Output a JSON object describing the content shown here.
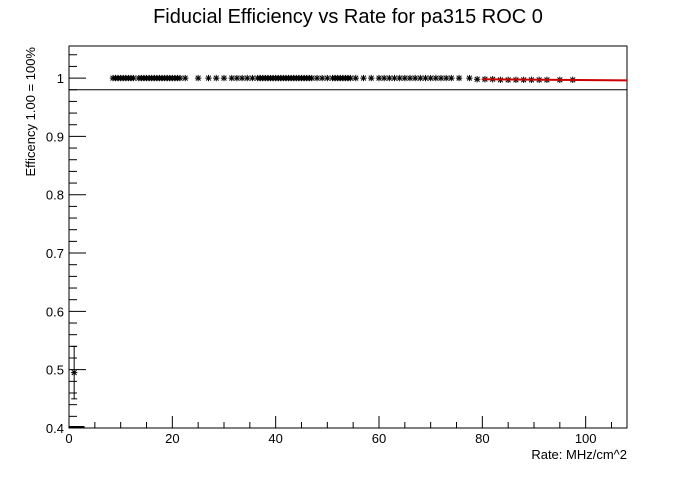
{
  "chart_data": {
    "type": "scatter",
    "title": "Fiducial Efficiency vs Rate for pa315 ROC 0",
    "xlabel": "Rate: MHz/cm^2",
    "ylabel": "Efficency 1.00 = 100%",
    "xlim": [
      0,
      108
    ],
    "ylim": [
      0.4,
      1.055
    ],
    "x_ticks": [
      0,
      20,
      40,
      60,
      80,
      100
    ],
    "x_tick_labels": [
      "0",
      "20",
      "40",
      "60",
      "80",
      "100"
    ],
    "y_ticks": [
      0.4,
      0.5,
      0.6,
      0.7,
      0.8,
      0.9,
      1.0
    ],
    "y_tick_labels": [
      "0.4",
      "0.5",
      "0.6",
      "0.7",
      "0.8",
      "0.9",
      "1"
    ],
    "grid": false,
    "reference_line": {
      "y": 0.98,
      "color": "#000000"
    },
    "fit_line": {
      "x": [
        80,
        108
      ],
      "y": [
        0.998,
        0.996
      ],
      "color": "#cc0000"
    },
    "series": [
      {
        "marker": "asterisk",
        "color": "#000000",
        "points": [
          {
            "x": 1.0,
            "y": 0.495,
            "yerr": 0.045
          },
          {
            "x": 8.5,
            "y": 1.0
          },
          {
            "x": 9.0,
            "y": 1.0
          },
          {
            "x": 9.5,
            "y": 1.0
          },
          {
            "x": 10.0,
            "y": 1.0
          },
          {
            "x": 10.5,
            "y": 1.0
          },
          {
            "x": 11.0,
            "y": 1.0
          },
          {
            "x": 11.5,
            "y": 1.0
          },
          {
            "x": 12.0,
            "y": 1.0
          },
          {
            "x": 12.5,
            "y": 1.0
          },
          {
            "x": 13.5,
            "y": 1.0
          },
          {
            "x": 14.0,
            "y": 1.0
          },
          {
            "x": 14.5,
            "y": 1.0
          },
          {
            "x": 15.0,
            "y": 1.0
          },
          {
            "x": 15.5,
            "y": 1.0
          },
          {
            "x": 16.0,
            "y": 1.0
          },
          {
            "x": 16.5,
            "y": 1.0
          },
          {
            "x": 17.0,
            "y": 1.0
          },
          {
            "x": 17.5,
            "y": 1.0
          },
          {
            "x": 18.0,
            "y": 1.0
          },
          {
            "x": 18.5,
            "y": 1.0
          },
          {
            "x": 19.0,
            "y": 1.0
          },
          {
            "x": 19.5,
            "y": 1.0
          },
          {
            "x": 20.0,
            "y": 1.0
          },
          {
            "x": 20.5,
            "y": 1.0
          },
          {
            "x": 21.0,
            "y": 1.0
          },
          {
            "x": 21.5,
            "y": 1.0
          },
          {
            "x": 22.5,
            "y": 1.0
          },
          {
            "x": 25.0,
            "y": 1.0
          },
          {
            "x": 27.0,
            "y": 1.0
          },
          {
            "x": 28.5,
            "y": 1.0
          },
          {
            "x": 30.0,
            "y": 1.0
          },
          {
            "x": 31.5,
            "y": 1.0
          },
          {
            "x": 32.5,
            "y": 1.0
          },
          {
            "x": 33.5,
            "y": 1.0
          },
          {
            "x": 34.5,
            "y": 1.0
          },
          {
            "x": 35.5,
            "y": 1.0
          },
          {
            "x": 36.5,
            "y": 1.0
          },
          {
            "x": 37.0,
            "y": 1.0
          },
          {
            "x": 37.5,
            "y": 1.0
          },
          {
            "x": 38.0,
            "y": 1.0
          },
          {
            "x": 38.5,
            "y": 1.0
          },
          {
            "x": 39.0,
            "y": 1.0
          },
          {
            "x": 39.5,
            "y": 1.0
          },
          {
            "x": 40.0,
            "y": 1.0
          },
          {
            "x": 40.5,
            "y": 1.0
          },
          {
            "x": 41.0,
            "y": 1.0
          },
          {
            "x": 41.5,
            "y": 1.0
          },
          {
            "x": 42.0,
            "y": 1.0
          },
          {
            "x": 42.5,
            "y": 1.0
          },
          {
            "x": 43.0,
            "y": 1.0
          },
          {
            "x": 43.5,
            "y": 1.0
          },
          {
            "x": 44.0,
            "y": 1.0
          },
          {
            "x": 44.5,
            "y": 1.0
          },
          {
            "x": 45.0,
            "y": 1.0
          },
          {
            "x": 45.5,
            "y": 1.0
          },
          {
            "x": 46.0,
            "y": 1.0
          },
          {
            "x": 46.5,
            "y": 1.0
          },
          {
            "x": 47.0,
            "y": 1.0
          },
          {
            "x": 48.0,
            "y": 1.0
          },
          {
            "x": 49.0,
            "y": 1.0
          },
          {
            "x": 50.0,
            "y": 1.0
          },
          {
            "x": 51.0,
            "y": 1.0
          },
          {
            "x": 51.5,
            "y": 1.0
          },
          {
            "x": 52.0,
            "y": 1.0
          },
          {
            "x": 52.5,
            "y": 1.0
          },
          {
            "x": 53.0,
            "y": 1.0
          },
          {
            "x": 53.5,
            "y": 1.0
          },
          {
            "x": 54.0,
            "y": 1.0
          },
          {
            "x": 54.5,
            "y": 1.0
          },
          {
            "x": 55.5,
            "y": 1.0
          },
          {
            "x": 57.0,
            "y": 1.0
          },
          {
            "x": 58.5,
            "y": 1.0
          },
          {
            "x": 60.0,
            "y": 1.0
          },
          {
            "x": 61.0,
            "y": 1.0
          },
          {
            "x": 62.0,
            "y": 1.0
          },
          {
            "x": 63.0,
            "y": 1.0
          },
          {
            "x": 64.0,
            "y": 1.0
          },
          {
            "x": 65.0,
            "y": 1.0
          },
          {
            "x": 66.0,
            "y": 1.0
          },
          {
            "x": 67.0,
            "y": 1.0
          },
          {
            "x": 68.0,
            "y": 1.0
          },
          {
            "x": 69.0,
            "y": 1.0
          },
          {
            "x": 70.0,
            "y": 1.0
          },
          {
            "x": 71.0,
            "y": 1.0
          },
          {
            "x": 72.0,
            "y": 1.0
          },
          {
            "x": 73.0,
            "y": 1.0
          },
          {
            "x": 74.0,
            "y": 1.0
          },
          {
            "x": 75.5,
            "y": 1.0
          },
          {
            "x": 77.5,
            "y": 1.0
          },
          {
            "x": 79.0,
            "y": 0.998
          },
          {
            "x": 80.5,
            "y": 0.998
          },
          {
            "x": 82.0,
            "y": 0.998
          },
          {
            "x": 83.5,
            "y": 0.997
          },
          {
            "x": 85.0,
            "y": 0.997
          },
          {
            "x": 86.5,
            "y": 0.997
          },
          {
            "x": 88.0,
            "y": 0.997
          },
          {
            "x": 89.5,
            "y": 0.997
          },
          {
            "x": 91.0,
            "y": 0.997
          },
          {
            "x": 92.5,
            "y": 0.997
          },
          {
            "x": 95.0,
            "y": 0.997
          },
          {
            "x": 97.5,
            "y": 0.997
          }
        ]
      }
    ]
  }
}
